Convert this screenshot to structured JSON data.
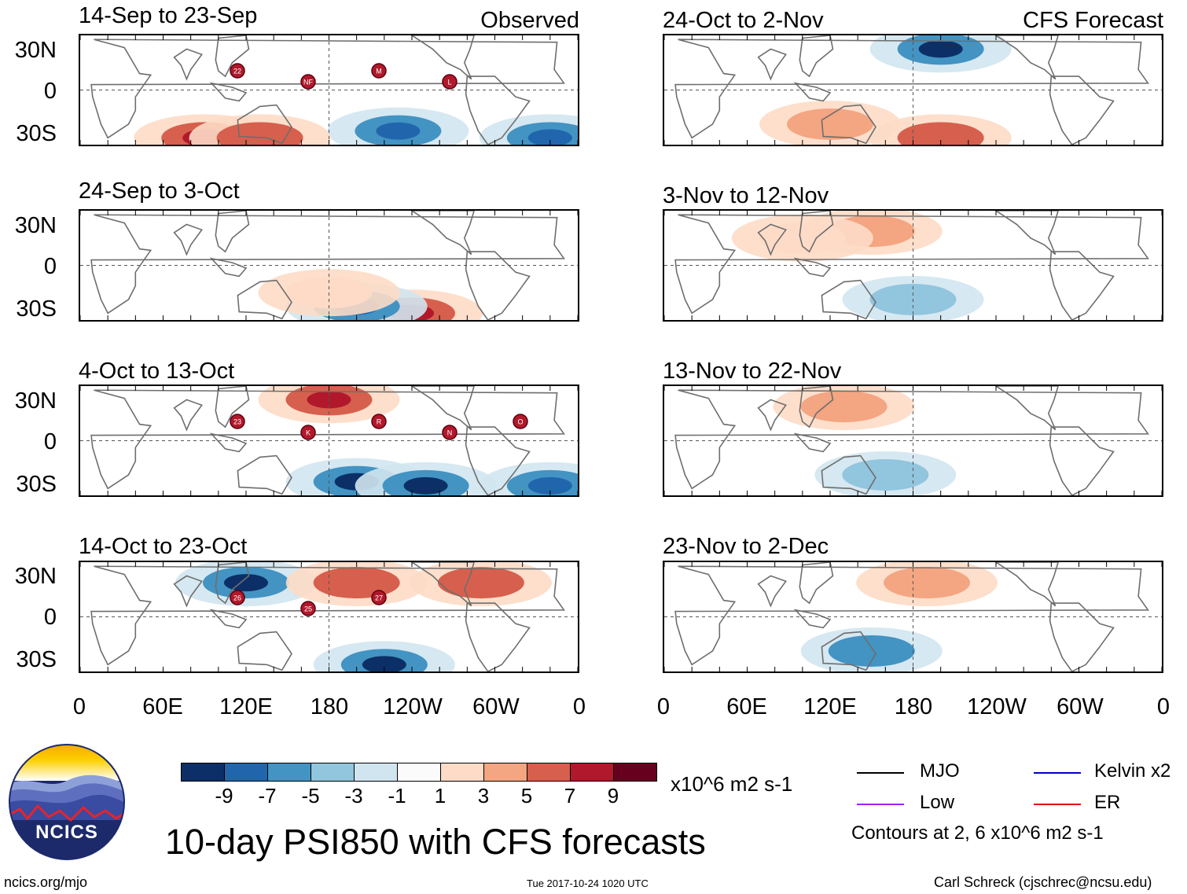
{
  "figure": {
    "main_title": "10-day PSI850 with CFS forecasts",
    "logo_text": "NCICS",
    "url": "ncics.org/mjo",
    "timestamp": "Tue 2017-10-24 1020 UTC",
    "credit": "Carl Schreck (cjschrec@ncsu.edu)",
    "observed_label": "Observed",
    "forecast_label": "CFS Forecast",
    "units": "x10^6 m2 s-1"
  },
  "chart_data": {
    "type": "heatmap",
    "title": "10-day PSI850 with CFS forecasts",
    "variable": "850-hPa streamfunction anomaly (10-day mean)",
    "units": "x10^6 m2 s-1",
    "lat_ticks": [
      "30N",
      "0",
      "30S"
    ],
    "lon_ticks": [
      "0",
      "60E",
      "120E",
      "180",
      "120W",
      "60W",
      "0"
    ],
    "lon_range": [
      0,
      360
    ],
    "lat_range": [
      -40,
      40
    ],
    "colorbar": {
      "labels": [
        "-9",
        "-7",
        "-5",
        "-3",
        "-1",
        "1",
        "3",
        "5",
        "7",
        "9"
      ],
      "colors": [
        "#0b2f66",
        "#2166ac",
        "#4393c3",
        "#92c5de",
        "#d1e5f0",
        "#fbfbfb",
        "#fddbc7",
        "#f4a582",
        "#d6604d",
        "#b2182b",
        "#67001f"
      ]
    },
    "legend": {
      "entries": [
        {
          "label": "MJO",
          "color": "#000000"
        },
        {
          "label": "Kelvin x2",
          "color": "#0000cc"
        },
        {
          "label": "Low",
          "color": "#a020f0"
        },
        {
          "label": "ER",
          "color": "#e00000"
        }
      ],
      "note": "Contours at 2, 6 x10^6 m2 s-1"
    },
    "panels": [
      {
        "period": "14-Sep to 23-Sep",
        "source": "Observed",
        "storms": [
          "22",
          "NF",
          "M",
          "L"
        ],
        "anomalies": [
          {
            "lon": 90,
            "lat": -35,
            "value": 9
          },
          {
            "lon": 230,
            "lat": -30,
            "value": -7
          },
          {
            "lon": 340,
            "lat": -35,
            "value": -8
          },
          {
            "lon": 130,
            "lat": -35,
            "value": 7
          }
        ]
      },
      {
        "period": "24-Sep to 3-Oct",
        "source": "Observed",
        "storms": [],
        "anomalies": [
          {
            "lon": 240,
            "lat": -35,
            "value": 9
          },
          {
            "lon": 200,
            "lat": -30,
            "value": -7
          },
          {
            "lon": 180,
            "lat": -20,
            "value": 3
          }
        ]
      },
      {
        "period": "4-Oct to 13-Oct",
        "source": "Observed",
        "storms": [
          "23",
          "K",
          "R",
          "N",
          "O"
        ],
        "anomalies": [
          {
            "lon": 180,
            "lat": 30,
            "value": 9
          },
          {
            "lon": 200,
            "lat": -30,
            "value": -9
          },
          {
            "lon": 250,
            "lat": -33,
            "value": -9
          },
          {
            "lon": 340,
            "lat": -33,
            "value": -7
          }
        ]
      },
      {
        "period": "14-Oct to 23-Oct",
        "source": "Observed",
        "storms": [
          "26",
          "25",
          "27"
        ],
        "anomalies": [
          {
            "lon": 120,
            "lat": 25,
            "value": -9
          },
          {
            "lon": 200,
            "lat": 25,
            "value": 7
          },
          {
            "lon": 220,
            "lat": -35,
            "value": -9
          },
          {
            "lon": 290,
            "lat": 25,
            "value": 6
          }
        ]
      },
      {
        "period": "24-Oct to 2-Nov",
        "source": "CFS Forecast",
        "storms": [],
        "anomalies": [
          {
            "lon": 200,
            "lat": 30,
            "value": -9
          },
          {
            "lon": 200,
            "lat": -35,
            "value": 7
          },
          {
            "lon": 120,
            "lat": -25,
            "value": 4
          }
        ]
      },
      {
        "period": "3-Nov to 12-Nov",
        "source": "CFS Forecast",
        "storms": [],
        "anomalies": [
          {
            "lon": 150,
            "lat": 25,
            "value": 5
          },
          {
            "lon": 100,
            "lat": 20,
            "value": 3
          },
          {
            "lon": 180,
            "lat": -25,
            "value": -3
          }
        ]
      },
      {
        "period": "13-Nov to 22-Nov",
        "source": "CFS Forecast",
        "storms": [],
        "anomalies": [
          {
            "lon": 130,
            "lat": 25,
            "value": 5
          },
          {
            "lon": 160,
            "lat": -25,
            "value": -3
          }
        ]
      },
      {
        "period": "23-Nov to 2-Dec",
        "source": "CFS Forecast",
        "storms": [],
        "anomalies": [
          {
            "lon": 190,
            "lat": 25,
            "value": 5
          },
          {
            "lon": 150,
            "lat": -25,
            "value": -5
          }
        ]
      }
    ]
  }
}
